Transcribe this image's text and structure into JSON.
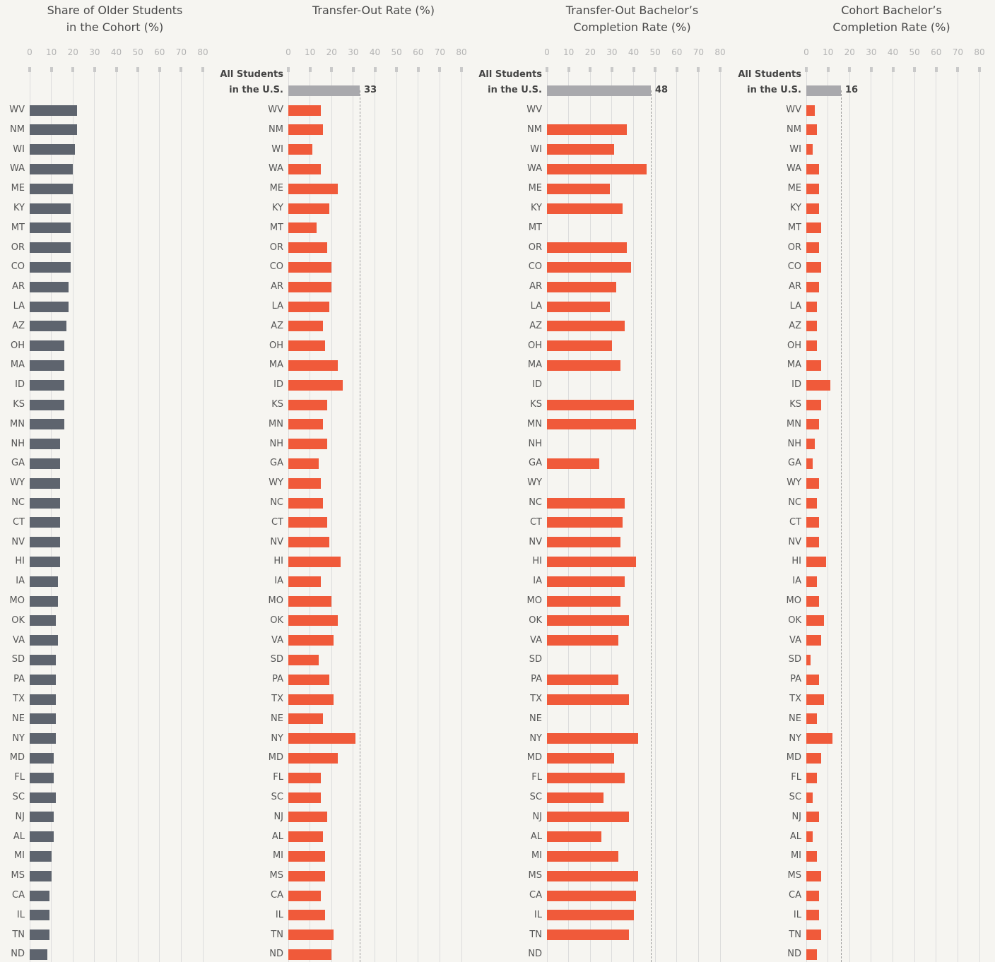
{
  "chart_data": [
    {
      "type": "bar",
      "orientation": "horizontal",
      "title": "Share of Older Students\nin the Cohort (%)",
      "color": "#5e646e",
      "categories": [
        "WV",
        "NM",
        "WI",
        "WA",
        "ME",
        "KY",
        "MT",
        "OR",
        "CO",
        "AR",
        "LA",
        "AZ",
        "OH",
        "MA",
        "ID",
        "KS",
        "MN",
        "NH",
        "GA",
        "WY",
        "NC",
        "CT",
        "NV",
        "HI",
        "IA",
        "MO",
        "OK",
        "VA",
        "SD",
        "PA",
        "TX",
        "NE",
        "NY",
        "MD",
        "FL",
        "SC",
        "NJ",
        "AL",
        "MI",
        "MS",
        "CA",
        "IL",
        "TN",
        "ND"
      ],
      "values": [
        22,
        22,
        21,
        20,
        20,
        19,
        19,
        19,
        19,
        18,
        18,
        17,
        16,
        16,
        16,
        16,
        16,
        14,
        14,
        14,
        14,
        14,
        14,
        14,
        13,
        13,
        12,
        13,
        12,
        12,
        12,
        12,
        12,
        11,
        11,
        12,
        11,
        11,
        10,
        10,
        9,
        9,
        9,
        8
      ],
      "xlim": [
        0,
        80
      ],
      "xticks": [
        0,
        10,
        20,
        30,
        40,
        50,
        60,
        70,
        80
      ],
      "grid": true
    },
    {
      "type": "bar",
      "orientation": "horizontal",
      "title": "Transfer-Out Rate (%)",
      "color": "#f05a3a",
      "reference_label": "All Students\nin the U.S.",
      "reference_value": 33,
      "reference_color": "#a9a9ad",
      "categories": [
        "WV",
        "NM",
        "WI",
        "WA",
        "ME",
        "KY",
        "MT",
        "OR",
        "CO",
        "AR",
        "LA",
        "AZ",
        "OH",
        "MA",
        "ID",
        "KS",
        "MN",
        "NH",
        "GA",
        "WY",
        "NC",
        "CT",
        "NV",
        "HI",
        "IA",
        "MO",
        "OK",
        "VA",
        "SD",
        "PA",
        "TX",
        "NE",
        "NY",
        "MD",
        "FL",
        "SC",
        "NJ",
        "AL",
        "MI",
        "MS",
        "CA",
        "IL",
        "TN",
        "ND"
      ],
      "values": [
        15,
        16,
        11,
        15,
        23,
        19,
        13,
        18,
        20,
        20,
        19,
        16,
        17,
        23,
        25,
        18,
        16,
        18,
        14,
        15,
        16,
        18,
        19,
        24,
        15,
        20,
        23,
        21,
        14,
        19,
        21,
        16,
        31,
        23,
        15,
        15,
        18,
        16,
        17,
        17,
        15,
        17,
        21,
        20
      ],
      "xlim": [
        0,
        80
      ],
      "xticks": [
        0,
        10,
        20,
        30,
        40,
        50,
        60,
        70,
        80
      ],
      "grid": true
    },
    {
      "type": "bar",
      "orientation": "horizontal",
      "title": "Transfer-Out Bachelor’s\nCompletion Rate (%)",
      "color": "#f05a3a",
      "reference_label": "All Students\nin the U.S.",
      "reference_value": 48,
      "reference_color": "#a9a9ad",
      "categories": [
        "WV",
        "NM",
        "WI",
        "WA",
        "ME",
        "KY",
        "MT",
        "OR",
        "CO",
        "AR",
        "LA",
        "AZ",
        "OH",
        "MA",
        "ID",
        "KS",
        "MN",
        "NH",
        "GA",
        "WY",
        "NC",
        "CT",
        "NV",
        "HI",
        "IA",
        "MO",
        "OK",
        "VA",
        "SD",
        "PA",
        "TX",
        "NE",
        "NY",
        "MD",
        "FL",
        "SC",
        "NJ",
        "AL",
        "MI",
        "MS",
        "CA",
        "IL",
        "TN",
        "ND"
      ],
      "values": [
        null,
        37,
        31,
        46,
        29,
        35,
        null,
        37,
        39,
        32,
        29,
        36,
        30,
        34,
        null,
        40,
        41,
        null,
        24,
        null,
        36,
        35,
        34,
        41,
        36,
        34,
        38,
        33,
        null,
        33,
        38,
        null,
        42,
        31,
        36,
        26,
        38,
        25,
        33,
        42,
        41,
        40,
        38,
        null
      ],
      "xlim": [
        0,
        80
      ],
      "xticks": [
        0,
        10,
        20,
        30,
        40,
        50,
        60,
        70,
        80
      ],
      "grid": true
    },
    {
      "type": "bar",
      "orientation": "horizontal",
      "title": "Cohort Bachelor’s\nCompletion Rate (%)",
      "color": "#f05a3a",
      "reference_label": "All Students\nin the U.S.",
      "reference_value": 16,
      "reference_color": "#a9a9ad",
      "categories": [
        "WV",
        "NM",
        "WI",
        "WA",
        "ME",
        "KY",
        "MT",
        "OR",
        "CO",
        "AR",
        "LA",
        "AZ",
        "OH",
        "MA",
        "ID",
        "KS",
        "MN",
        "NH",
        "GA",
        "WY",
        "NC",
        "CT",
        "NV",
        "HI",
        "IA",
        "MO",
        "OK",
        "VA",
        "SD",
        "PA",
        "TX",
        "NE",
        "NY",
        "MD",
        "FL",
        "SC",
        "NJ",
        "AL",
        "MI",
        "MS",
        "CA",
        "IL",
        "TN",
        "ND"
      ],
      "values": [
        4,
        5,
        3,
        6,
        6,
        6,
        7,
        6,
        7,
        6,
        5,
        5,
        5,
        7,
        11,
        7,
        6,
        4,
        3,
        6,
        5,
        6,
        6,
        9,
        5,
        6,
        8,
        7,
        2,
        6,
        8,
        5,
        12,
        7,
        5,
        3,
        6,
        3,
        5,
        7,
        6,
        6,
        7,
        5
      ],
      "xlim": [
        0,
        80
      ],
      "xticks": [
        0,
        10,
        20,
        30,
        40,
        50,
        60,
        70,
        80
      ],
      "grid": true
    }
  ]
}
